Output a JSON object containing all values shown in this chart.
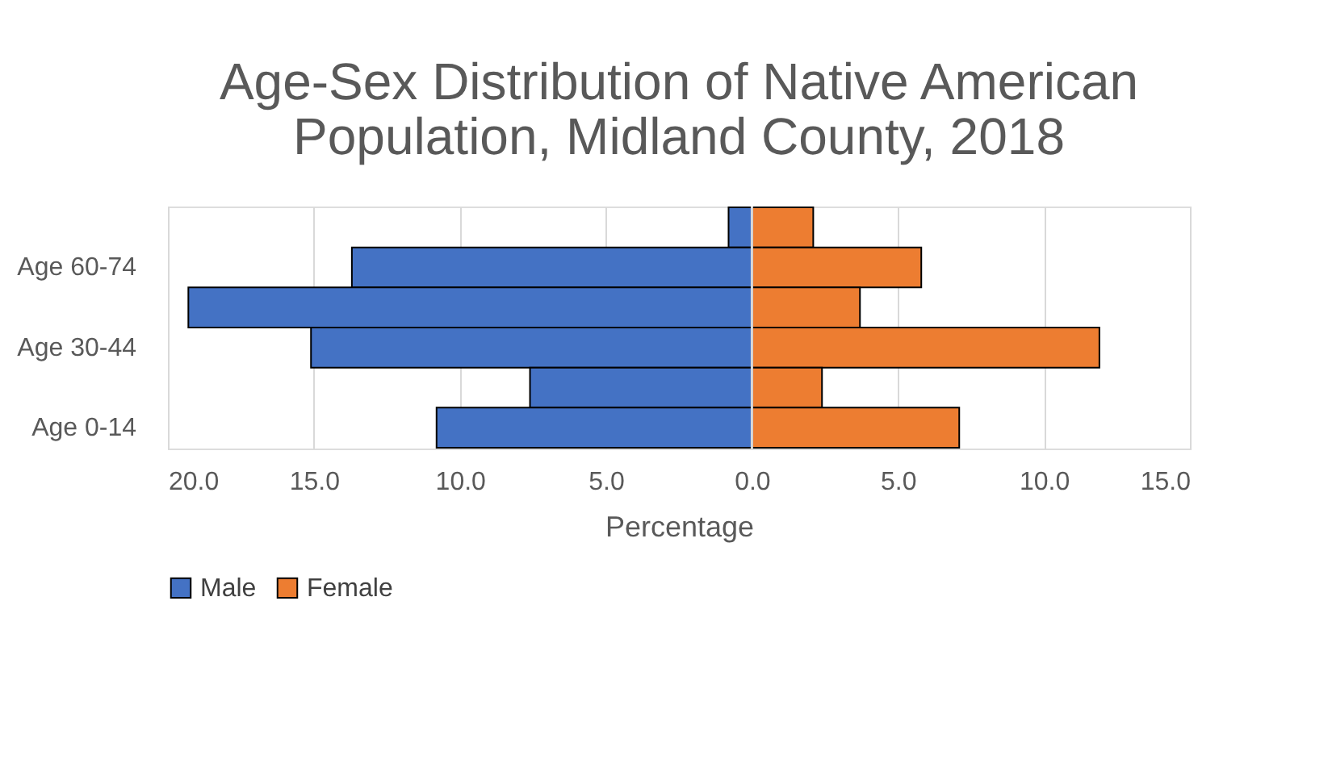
{
  "chart_data": {
    "type": "bar",
    "orientation": "horizontal",
    "title": "Age-Sex Distribution of Native American Population, Midland County, 2018",
    "categories": [
      null,
      "Age 60-74",
      null,
      "Age 30-44",
      null,
      "Age 0-14"
    ],
    "series": [
      {
        "name": "Male",
        "color": "#4472c4",
        "values": [
          -0.8,
          -13.7,
          -19.3,
          -15.1,
          -7.6,
          -10.8
        ]
      },
      {
        "name": "Female",
        "color": "#ed7d31",
        "values": [
          2.1,
          5.8,
          3.7,
          11.9,
          2.4,
          7.1
        ]
      }
    ],
    "xlabel": "Percentage",
    "xlim": [
      -20,
      15
    ],
    "xticks": [
      {
        "value": -20,
        "label": "20.0"
      },
      {
        "value": -15,
        "label": "15.0"
      },
      {
        "value": -10,
        "label": "10.0"
      },
      {
        "value": -5,
        "label": "5.0"
      },
      {
        "value": 0,
        "label": "0.0"
      },
      {
        "value": 5,
        "label": "5.0"
      },
      {
        "value": 10,
        "label": "10.0"
      },
      {
        "value": 15,
        "label": "15.0"
      }
    ],
    "grid": "x",
    "legend": "bottom",
    "stacked": true
  }
}
